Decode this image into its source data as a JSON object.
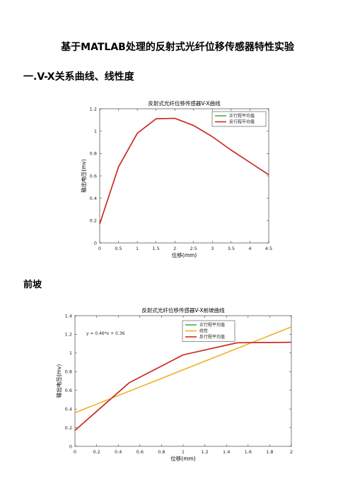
{
  "doc": {
    "title": "基于MATLAB处理的反射式光纤位移传感器特性实验",
    "section1": "一.V-X关系曲线、线性度",
    "section2": "前坡"
  },
  "chart_data": [
    {
      "type": "line",
      "title": "反射式光纤位移传感器V-X曲线",
      "xlabel": "位移(mm)",
      "ylabel": "输出电压(mv)",
      "xlim": [
        0,
        4.5
      ],
      "ylim": [
        0,
        1.2
      ],
      "xticks": [
        0,
        0.5,
        1,
        1.5,
        2,
        2.5,
        3,
        3.5,
        4,
        4.5
      ],
      "xtick_labels": [
        "0",
        "0.5",
        "1",
        "1.5",
        "2",
        "2.5",
        "3",
        "3.5",
        "4",
        "4.5"
      ],
      "yticks": [
        0,
        0.2,
        0.4,
        0.6,
        0.8,
        1,
        1.2
      ],
      "ytick_labels": [
        "0",
        "0.2",
        "0.4",
        "0.6",
        "0.8",
        "1",
        "1.2"
      ],
      "legend_position": "top-right",
      "grid": false,
      "series": [
        {
          "name": "正行程平均值",
          "color": "#4daf4a",
          "x": [
            0,
            0.5,
            1,
            1.5,
            2,
            2.5,
            3,
            3.5,
            4,
            4.5
          ],
          "y": [
            0.17,
            0.68,
            0.98,
            1.11,
            1.115,
            1.05,
            0.95,
            0.83,
            0.72,
            0.61
          ]
        },
        {
          "name": "反行程平均值",
          "color": "#d62728",
          "x": [
            0,
            0.5,
            1,
            1.5,
            2,
            2.5,
            3,
            3.5,
            4,
            4.5
          ],
          "y": [
            0.17,
            0.68,
            0.98,
            1.11,
            1.115,
            1.05,
            0.95,
            0.83,
            0.72,
            0.61
          ]
        }
      ]
    },
    {
      "type": "line",
      "title": "反射式光纤位移传感器V-X前坡曲线",
      "xlabel": "位移(mm)",
      "ylabel": "输出电压(mv)",
      "xlim": [
        0,
        2
      ],
      "ylim": [
        0,
        1.4
      ],
      "xticks": [
        0,
        0.2,
        0.4,
        0.6,
        0.8,
        1,
        1.2,
        1.4,
        1.6,
        1.8,
        2
      ],
      "xtick_labels": [
        "0",
        "0.2",
        "0.4",
        "0.6",
        "0.8",
        "1",
        "1.2",
        "1.4",
        "1.6",
        "1.8",
        "2"
      ],
      "yticks": [
        0,
        0.2,
        0.4,
        0.6,
        0.8,
        1,
        1.2,
        1.4
      ],
      "ytick_labels": [
        "0",
        "0.2",
        "0.4",
        "0.6",
        "0.8",
        "1",
        "1.2",
        "1.4"
      ],
      "legend_position": "top-center",
      "grid": false,
      "annotation": "y = 0.46*x + 0.36",
      "series": [
        {
          "name": "正行程平均值",
          "color": "#4daf4a",
          "x": [
            0,
            0.5,
            1,
            1.5,
            2
          ],
          "y": [
            0.17,
            0.68,
            0.98,
            1.11,
            1.115
          ]
        },
        {
          "name": "线性",
          "color": "#edb120",
          "x": [
            0,
            2
          ],
          "y": [
            0.36,
            1.28
          ]
        },
        {
          "name": "反行程平均值",
          "color": "#d62728",
          "x": [
            0,
            0.5,
            1,
            1.5,
            2
          ],
          "y": [
            0.17,
            0.68,
            0.98,
            1.11,
            1.115
          ]
        }
      ]
    }
  ]
}
